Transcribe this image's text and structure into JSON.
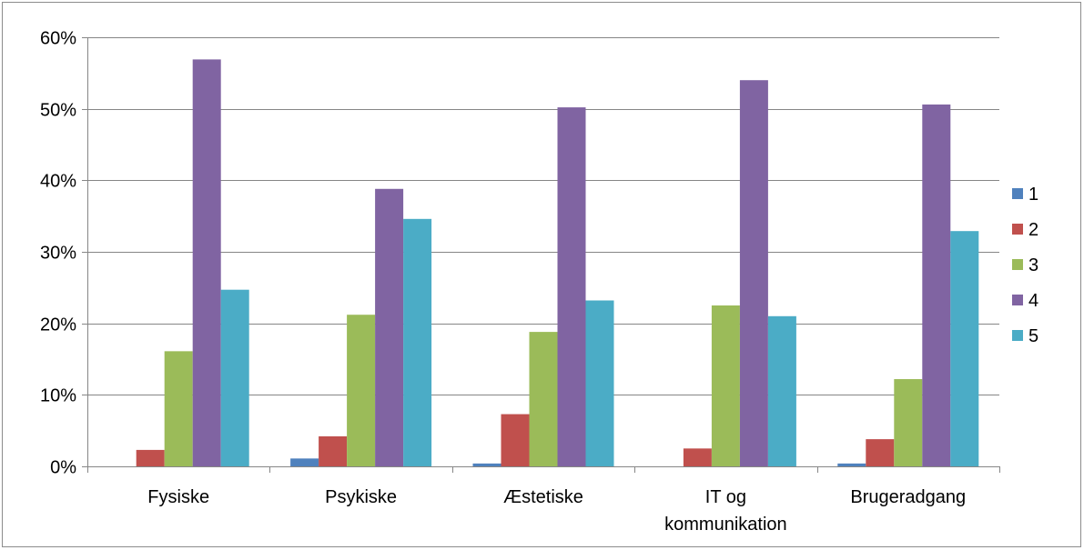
{
  "chart_data": {
    "type": "bar",
    "title": "",
    "xlabel": "",
    "ylabel": "",
    "ylim": [
      0,
      0.6
    ],
    "y_ticks": [
      0,
      0.1,
      0.2,
      0.3,
      0.4,
      0.5,
      0.6
    ],
    "y_tick_labels": [
      "0%",
      "10%",
      "20%",
      "30%",
      "40%",
      "50%",
      "60%"
    ],
    "categories": [
      [
        "Fysiske"
      ],
      [
        "Psykiske"
      ],
      [
        "Æstetiske"
      ],
      [
        "IT og",
        "kommunikation"
      ],
      [
        "Brugeradgang"
      ]
    ],
    "grid": true,
    "legend_position": "right",
    "series": [
      {
        "name": "1",
        "color": "#4f81bd",
        "values": [
          0.0,
          0.011,
          0.004,
          0.0,
          0.004
        ]
      },
      {
        "name": "2",
        "color": "#c0504d",
        "values": [
          0.023,
          0.042,
          0.073,
          0.025,
          0.038
        ]
      },
      {
        "name": "3",
        "color": "#9bbb59",
        "values": [
          0.161,
          0.212,
          0.188,
          0.225,
          0.122
        ]
      },
      {
        "name": "4",
        "color": "#8064a2",
        "values": [
          0.569,
          0.388,
          0.502,
          0.54,
          0.506
        ]
      },
      {
        "name": "5",
        "color": "#4bacc6",
        "values": [
          0.247,
          0.346,
          0.232,
          0.21,
          0.329
        ]
      }
    ]
  }
}
